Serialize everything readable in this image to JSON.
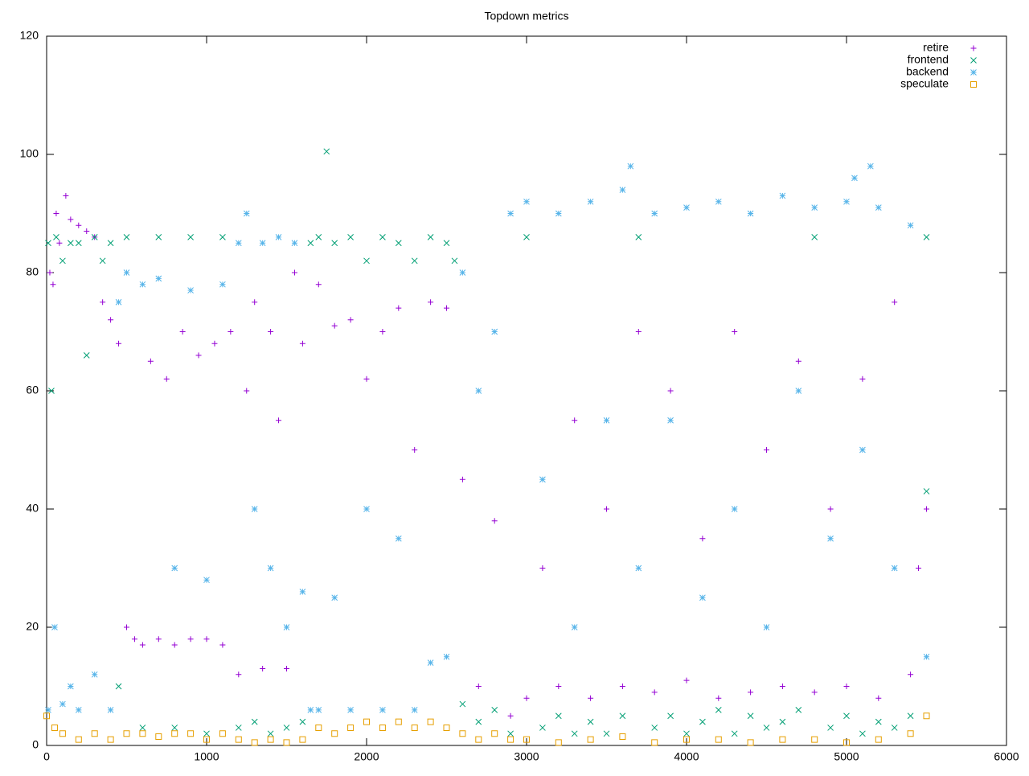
{
  "chart_data": {
    "type": "scatter",
    "title": "Topdown metrics",
    "xlim": [
      0,
      6000
    ],
    "ylim": [
      0,
      120
    ],
    "xticks": [
      0,
      1000,
      2000,
      3000,
      4000,
      5000,
      6000
    ],
    "yticks": [
      0,
      20,
      40,
      60,
      80,
      100,
      120
    ],
    "legend": "top-right",
    "series": [
      {
        "name": "retire",
        "color": "#9400d3",
        "marker": "plus",
        "x": [
          20,
          40,
          60,
          80,
          120,
          150,
          200,
          250,
          300,
          350,
          400,
          450,
          500,
          550,
          600,
          650,
          700,
          750,
          800,
          850,
          900,
          950,
          1000,
          1050,
          1100,
          1150,
          1200,
          1250,
          1300,
          1350,
          1400,
          1450,
          1500,
          1550,
          1600,
          1700,
          1800,
          1900,
          2000,
          2100,
          2200,
          2300,
          2400,
          2500,
          2600,
          2700,
          2800,
          2900,
          3000,
          3100,
          3200,
          3300,
          3400,
          3500,
          3600,
          3700,
          3800,
          3900,
          4000,
          4100,
          4200,
          4300,
          4400,
          4500,
          4600,
          4700,
          4800,
          4900,
          5000,
          5100,
          5200,
          5300,
          5400,
          5450,
          5500
        ],
        "values": [
          80,
          78,
          90,
          85,
          93,
          89,
          88,
          87,
          86,
          75,
          72,
          68,
          20,
          18,
          17,
          65,
          18,
          62,
          17,
          70,
          18,
          66,
          18,
          68,
          17,
          70,
          12,
          60,
          75,
          13,
          70,
          55,
          13,
          80,
          68,
          78,
          71,
          72,
          62,
          70,
          74,
          50,
          75,
          74,
          45,
          10,
          38,
          5,
          8,
          30,
          10,
          55,
          8,
          40,
          10,
          70,
          9,
          60,
          11,
          35,
          8,
          70,
          9,
          50,
          10,
          65,
          9,
          40,
          10,
          62,
          8,
          75,
          12,
          30,
          40
        ]
      },
      {
        "name": "frontend",
        "color": "#009e73",
        "marker": "cross",
        "x": [
          10,
          30,
          60,
          100,
          150,
          200,
          250,
          300,
          350,
          400,
          450,
          500,
          600,
          700,
          800,
          900,
          1000,
          1100,
          1200,
          1300,
          1400,
          1500,
          1600,
          1650,
          1700,
          1750,
          1800,
          1900,
          2000,
          2100,
          2200,
          2300,
          2400,
          2500,
          2550,
          2600,
          2700,
          2800,
          2900,
          3000,
          3100,
          3200,
          3300,
          3400,
          3500,
          3600,
          3700,
          3800,
          3900,
          4000,
          4100,
          4200,
          4300,
          4400,
          4500,
          4600,
          4700,
          4800,
          4900,
          5000,
          5100,
          5200,
          5300,
          5400,
          5500,
          5500
        ],
        "values": [
          85,
          60,
          86,
          82,
          85,
          85,
          66,
          86,
          82,
          85,
          10,
          86,
          3,
          86,
          3,
          86,
          2,
          86,
          3,
          4,
          2,
          3,
          4,
          85,
          86,
          100.5,
          85,
          86,
          82,
          86,
          85,
          82,
          86,
          85,
          82,
          7,
          4,
          6,
          2,
          86,
          3,
          5,
          2,
          4,
          2,
          5,
          86,
          3,
          5,
          2,
          4,
          6,
          2,
          5,
          3,
          4,
          6,
          86,
          3,
          5,
          2,
          4,
          3,
          5,
          86,
          43
        ]
      },
      {
        "name": "backend",
        "color": "#56b4e9",
        "marker": "star",
        "x": [
          10,
          50,
          100,
          150,
          200,
          300,
          400,
          450,
          500,
          600,
          700,
          800,
          900,
          1000,
          1100,
          1200,
          1250,
          1300,
          1350,
          1400,
          1450,
          1500,
          1550,
          1600,
          1650,
          1700,
          1800,
          1900,
          2000,
          2100,
          2200,
          2300,
          2400,
          2500,
          2600,
          2700,
          2800,
          2900,
          3000,
          3100,
          3200,
          3300,
          3400,
          3500,
          3600,
          3650,
          3700,
          3800,
          3900,
          4000,
          4100,
          4200,
          4300,
          4400,
          4500,
          4600,
          4700,
          4800,
          4900,
          5000,
          5050,
          5100,
          5150,
          5200,
          5300,
          5400,
          5500
        ],
        "values": [
          6,
          20,
          7,
          10,
          6,
          12,
          6,
          75,
          80,
          78,
          79,
          30,
          77,
          28,
          78,
          85,
          90,
          40,
          85,
          30,
          86,
          20,
          85,
          26,
          6,
          6,
          25,
          6,
          40,
          6,
          35,
          6,
          14,
          15,
          80,
          60,
          70,
          90,
          92,
          45,
          90,
          20,
          92,
          55,
          94,
          98,
          30,
          90,
          55,
          91,
          25,
          92,
          40,
          90,
          20,
          93,
          60,
          91,
          35,
          92,
          96,
          50,
          98,
          91,
          30,
          88,
          15
        ]
      },
      {
        "name": "speculate",
        "color": "#e69f00",
        "marker": "square",
        "x": [
          0,
          50,
          100,
          200,
          300,
          400,
          500,
          600,
          700,
          800,
          900,
          1000,
          1100,
          1200,
          1300,
          1400,
          1500,
          1600,
          1700,
          1800,
          1900,
          2000,
          2100,
          2200,
          2300,
          2400,
          2500,
          2600,
          2700,
          2800,
          2900,
          3000,
          3200,
          3400,
          3600,
          3800,
          4000,
          4200,
          4400,
          4600,
          4800,
          5000,
          5200,
          5400,
          5500
        ],
        "values": [
          5,
          3,
          2,
          1,
          2,
          1,
          2,
          2,
          1.5,
          2,
          2,
          1,
          2,
          1,
          0.5,
          1,
          0.5,
          1,
          3,
          2,
          3,
          4,
          3,
          4,
          3,
          4,
          3,
          2,
          1,
          2,
          1,
          1,
          0.5,
          1,
          1.5,
          0.5,
          1,
          1,
          0.5,
          1,
          1,
          0.5,
          1,
          2,
          5
        ]
      }
    ]
  }
}
